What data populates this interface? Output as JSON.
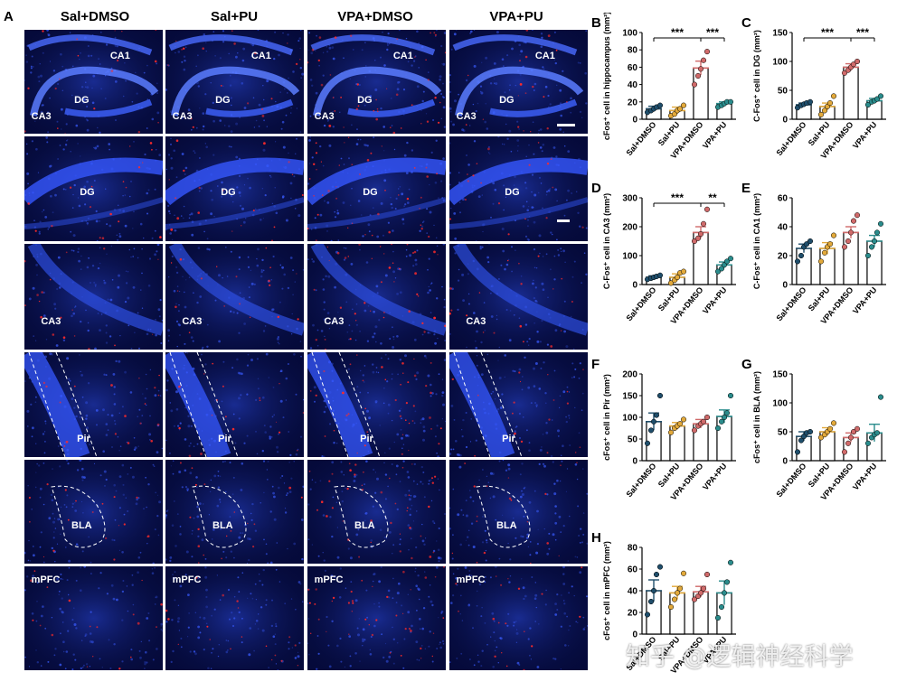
{
  "figure": {
    "panel_a_letter": "A",
    "groups": [
      "Sal+DMSO",
      "Sal+PU",
      "VPA+DMSO",
      "VPA+PU"
    ],
    "image_rows": [
      {
        "region": "hippocampus",
        "labels": [
          "CA1",
          "DG",
          "CA3"
        ],
        "scale_bar": true
      },
      {
        "region": "DG",
        "labels": [
          "DG"
        ],
        "scale_bar": true
      },
      {
        "region": "CA3",
        "labels": [
          "CA3"
        ],
        "scale_bar": false
      },
      {
        "region": "Pir",
        "labels": [
          "Pir"
        ],
        "scale_bar": false
      },
      {
        "region": "BLA",
        "labels": [
          "BLA"
        ],
        "scale_bar": false
      },
      {
        "region": "mPFC",
        "labels": [
          "mPFC"
        ],
        "scale_bar": false
      }
    ],
    "watermark": "知乎 @逻辑神经科学",
    "colors": {
      "Sal+DMSO": "#1f4e6b",
      "Sal+PU": "#e2a93b",
      "VPA+DMSO": "#d06a6a",
      "VPA+PU": "#2a8c8c",
      "tissue_blue": "#1a3fc4",
      "cfos_red": "#ff2a2a"
    }
  },
  "chart_data": [
    {
      "panel": "B",
      "type": "bar",
      "categories": [
        "Sal+DMSO",
        "Sal+PU",
        "VPA+DMSO",
        "VPA+PU"
      ],
      "values": [
        12,
        10,
        59,
        18
      ],
      "errors": [
        3,
        4,
        8,
        2
      ],
      "points": [
        [
          8,
          10,
          12,
          14,
          16
        ],
        [
          4,
          6,
          10,
          12,
          16
        ],
        [
          40,
          50,
          58,
          68,
          78
        ],
        [
          14,
          16,
          18,
          20,
          20
        ]
      ],
      "ylabel": "cFos⁺ cell in hippocampus (mm²)",
      "ylim": [
        0,
        100
      ],
      "yticks": [
        0,
        20,
        40,
        60,
        80,
        100
      ],
      "sig": [
        {
          "from": 0,
          "to": 2,
          "label": "***"
        },
        {
          "from": 2,
          "to": 3,
          "label": "***"
        }
      ]
    },
    {
      "panel": "C",
      "type": "bar",
      "categories": [
        "Sal+DMSO",
        "Sal+PU",
        "VPA+DMSO",
        "VPA+PU"
      ],
      "values": [
        25,
        22,
        90,
        32
      ],
      "errors": [
        3,
        6,
        6,
        4
      ],
      "points": [
        [
          20,
          24,
          26,
          28,
          30
        ],
        [
          8,
          15,
          22,
          28,
          40
        ],
        [
          80,
          85,
          90,
          95,
          100
        ],
        [
          25,
          30,
          32,
          35,
          40
        ]
      ],
      "ylabel": "C-Fos⁺ cell in DG (mm²)",
      "ylim": [
        0,
        150
      ],
      "yticks": [
        0,
        50,
        100,
        150
      ],
      "sig": [
        {
          "from": 0,
          "to": 2,
          "label": "***"
        },
        {
          "from": 2,
          "to": 3,
          "label": "***"
        }
      ]
    },
    {
      "panel": "D",
      "type": "bar",
      "categories": [
        "Sal+DMSO",
        "Sal+PU",
        "VPA+DMSO",
        "VPA+PU"
      ],
      "values": [
        25,
        25,
        180,
        68
      ],
      "errors": [
        5,
        12,
        20,
        10
      ],
      "points": [
        [
          18,
          22,
          25,
          28,
          32
        ],
        [
          5,
          15,
          25,
          40,
          45
        ],
        [
          150,
          160,
          175,
          210,
          260
        ],
        [
          45,
          55,
          68,
          80,
          90
        ]
      ],
      "ylabel": "C-Fos⁺ cell in CA3 (mm²)",
      "ylim": [
        0,
        300
      ],
      "yticks": [
        0,
        100,
        200,
        300
      ],
      "sig": [
        {
          "from": 0,
          "to": 2,
          "label": "***"
        },
        {
          "from": 2,
          "to": 3,
          "label": "**"
        }
      ]
    },
    {
      "panel": "E",
      "type": "bar",
      "categories": [
        "Sal+DMSO",
        "Sal+PU",
        "VPA+DMSO",
        "VPA+PU"
      ],
      "values": [
        25,
        25,
        36,
        30
      ],
      "errors": [
        3,
        4,
        4,
        4
      ],
      "points": [
        [
          16,
          20,
          26,
          28,
          30
        ],
        [
          16,
          22,
          26,
          28,
          34
        ],
        [
          26,
          30,
          36,
          44,
          48
        ],
        [
          20,
          26,
          30,
          36,
          42
        ]
      ],
      "ylabel": "C-Fos⁺ cell in CA1 (mm²)",
      "ylim": [
        0,
        60
      ],
      "yticks": [
        0,
        20,
        40,
        60
      ]
    },
    {
      "panel": "F",
      "type": "bar",
      "categories": [
        "Sal+DMSO",
        "Sal+PU",
        "VPA+DMSO",
        "VPA+PU"
      ],
      "values": [
        90,
        80,
        85,
        102
      ],
      "errors": [
        20,
        8,
        10,
        15
      ],
      "points": [
        [
          40,
          70,
          90,
          105,
          150
        ],
        [
          65,
          75,
          80,
          85,
          95
        ],
        [
          70,
          80,
          85,
          90,
          100
        ],
        [
          75,
          90,
          100,
          110,
          150
        ]
      ],
      "ylabel": "cFos⁺ cell in Pir (mm²)",
      "ylim": [
        0,
        200
      ],
      "yticks": [
        0,
        50,
        100,
        150,
        200
      ]
    },
    {
      "panel": "G",
      "type": "bar",
      "categories": [
        "Sal+DMSO",
        "Sal+PU",
        "VPA+DMSO",
        "VPA+PU"
      ],
      "values": [
        42,
        50,
        40,
        48
      ],
      "errors": [
        8,
        7,
        8,
        15
      ],
      "points": [
        [
          15,
          35,
          42,
          48,
          50
        ],
        [
          40,
          45,
          50,
          55,
          65
        ],
        [
          15,
          30,
          40,
          50,
          55
        ],
        [
          30,
          40,
          45,
          48,
          110
        ]
      ],
      "ylabel": "cFos⁺ cell in BLA (mm²)",
      "ylim": [
        0,
        150
      ],
      "yticks": [
        0,
        50,
        100,
        150
      ]
    },
    {
      "panel": "H",
      "type": "bar",
      "categories": [
        "Sal+DMSO",
        "Sal+PU",
        "VPA+DMSO",
        "VPA+PU"
      ],
      "values": [
        40,
        38,
        39,
        38
      ],
      "errors": [
        10,
        6,
        5,
        11
      ],
      "points": [
        [
          18,
          30,
          40,
          55,
          62
        ],
        [
          25,
          32,
          38,
          42,
          56
        ],
        [
          32,
          35,
          38,
          42,
          55
        ],
        [
          15,
          25,
          38,
          48,
          66
        ]
      ],
      "ylabel": "cFos⁺ cell in mPFC (mm²)",
      "ylim": [
        0,
        80
      ],
      "yticks": [
        0,
        20,
        40,
        60,
        80
      ]
    }
  ]
}
